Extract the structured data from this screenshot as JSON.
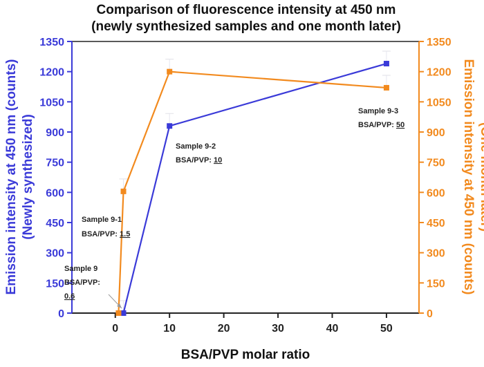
{
  "chart_data": {
    "type": "line",
    "title_line1": "Comparison of fluorescence intensity at 450 nm",
    "title_line2": "(newly synthesized samples and one month later)",
    "xlabel": "BSA/PVP molar ratio",
    "ylabel_left_line1": "Emission intensity at 450 nm (counts)",
    "ylabel_left_line2": "(Newly synthesized)",
    "ylabel_right_line1": "Emission intensity at 450 nm (counts)",
    "ylabel_right_line2": "(One month later)",
    "xlim": [
      -8,
      56
    ],
    "ylim": [
      0,
      1350
    ],
    "x_ticks": [
      0,
      10,
      20,
      30,
      40,
      50
    ],
    "y_ticks": [
      0,
      150,
      300,
      450,
      600,
      750,
      900,
      1050,
      1200,
      1350
    ],
    "grid": false,
    "series": [
      {
        "color": "#3a3ad8",
        "axis": "left",
        "x": [
          0.6,
          1.5,
          10,
          50
        ],
        "y": [
          0,
          0,
          930,
          1240
        ]
      },
      {
        "color": "#f28a1e",
        "axis": "right",
        "x": [
          0.6,
          1.5,
          10,
          50
        ],
        "y": [
          0,
          605,
          1200,
          1120
        ]
      }
    ],
    "annotations": [
      {
        "name": "sample-9",
        "line1": "Sample 9",
        "line2": "BSA/PVP:",
        "line3": "0.6"
      },
      {
        "name": "sample-9-1",
        "line1": "Sample 9-1",
        "line2": "BSA/PVP: ",
        "line2_value": "1.5"
      },
      {
        "name": "sample-9-2",
        "line1": "Sample 9-2",
        "line2": "BSA/PVP: ",
        "line2_value": "10"
      },
      {
        "name": "sample-9-3",
        "line1": "Sample 9-3",
        "line2": "BSA/PVP: ",
        "line2_value": "50"
      }
    ]
  }
}
